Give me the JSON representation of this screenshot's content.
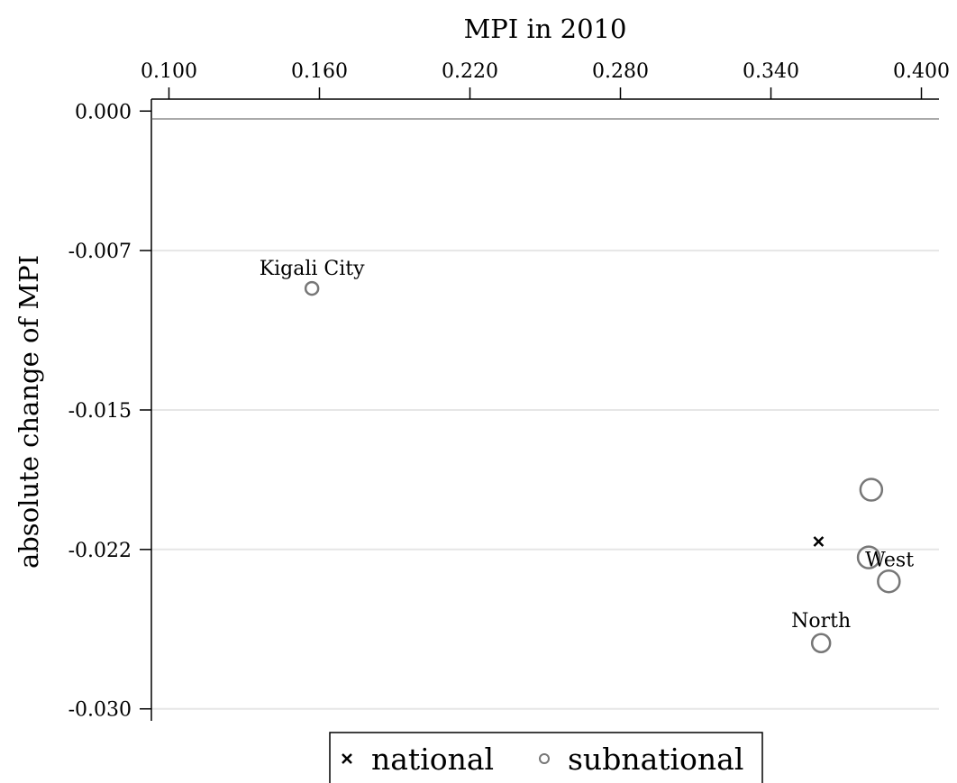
{
  "chart_data": {
    "type": "scatter",
    "xlabel": "MPI in 2010",
    "ylabel": "absolute change of MPI",
    "x_axis_position": "top",
    "xlim": [
      0.093,
      0.407
    ],
    "ylim": [
      -0.0306,
      0.0006
    ],
    "x_ticks": [
      "0.100",
      "0.160",
      "0.220",
      "0.280",
      "0.340",
      "0.400"
    ],
    "y_ticks": [
      "0.000",
      "-0.007",
      "-0.015",
      "-0.022",
      "-0.030"
    ],
    "grid": "horizontal",
    "series": [
      {
        "name": "national",
        "marker": "x",
        "color": "#000000",
        "points": [
          {
            "x": 0.359,
            "y": -0.0216,
            "label": ""
          }
        ]
      },
      {
        "name": "subnational",
        "marker": "hollow-circle",
        "color": "#777777",
        "points": [
          {
            "x": 0.157,
            "y": -0.0089,
            "label": "Kigali City",
            "size": "small"
          },
          {
            "x": 0.38,
            "y": -0.019,
            "label": "",
            "size": "large"
          },
          {
            "x": 0.379,
            "y": -0.0224,
            "label": "West",
            "size": "large"
          },
          {
            "x": 0.387,
            "y": -0.0236,
            "label": "",
            "size": "large"
          },
          {
            "x": 0.36,
            "y": -0.0267,
            "label": "North",
            "size": "medium"
          }
        ]
      }
    ],
    "legend": {
      "placement": "bottom-center",
      "entries": [
        {
          "name": "national",
          "marker": "x"
        },
        {
          "name": "subnational",
          "marker": "hollow-circle"
        }
      ]
    }
  }
}
